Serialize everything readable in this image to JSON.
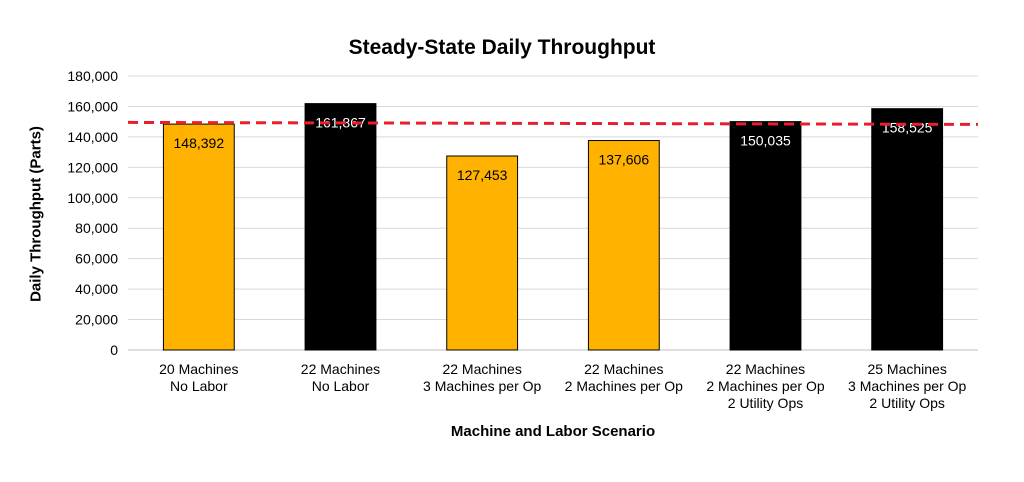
{
  "chart_data": {
    "type": "bar",
    "title": "Steady-State Daily Throughput",
    "xlabel": "Machine and Labor Scenario",
    "ylabel": "Daily Throughput (Parts)",
    "ylim": [
      0,
      180000
    ],
    "yticks": [
      "0",
      "20,000",
      "40,000",
      "60,000",
      "80,000",
      "100,000",
      "120,000",
      "140,000",
      "160,000",
      "180,000"
    ],
    "grid": true,
    "categories": [
      [
        "20 Machines",
        "No Labor"
      ],
      [
        "22 Machines",
        "No Labor"
      ],
      [
        "22 Machines",
        "3 Machines per Op"
      ],
      [
        "22 Machines",
        "2 Machines per Op"
      ],
      [
        "22 Machines",
        "2 Machines per Op",
        "2 Utility Ops"
      ],
      [
        "25 Machines",
        "3 Machines per Op",
        "2 Utility Ops"
      ]
    ],
    "values": [
      148392,
      161867,
      127453,
      137606,
      150035,
      158525
    ],
    "data_labels": [
      "148,392",
      "161,867",
      "127,453",
      "137,606",
      "150,035",
      "158,525"
    ],
    "bar_colors": [
      "#FFB300",
      "#000000",
      "#FFB300",
      "#FFB300",
      "#000000",
      "#000000"
    ],
    "label_colors": [
      "#000000",
      "#ffffff",
      "#000000",
      "#000000",
      "#ffffff",
      "#ffffff"
    ],
    "reference_line": {
      "start": 149500,
      "end": 148200,
      "color": "#E8202A",
      "style": "dashed"
    }
  }
}
